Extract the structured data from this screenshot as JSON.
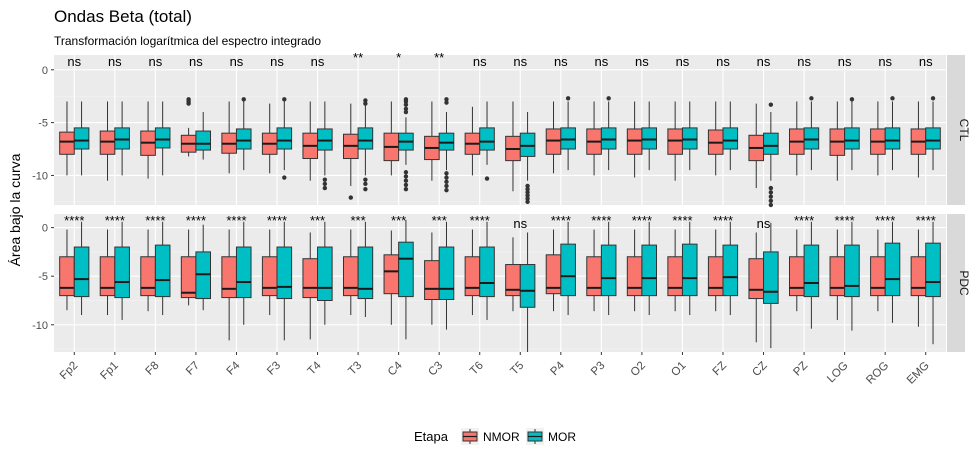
{
  "chart_data": {
    "type": "boxplot",
    "title": "Ondas Beta (total)",
    "subtitle": "Transformación logarítmica del espectro integrado",
    "ylabel": "Área bajo la curva",
    "xlabel": "",
    "ylim": [
      -12.8,
      1.4
    ],
    "yticks": [
      0,
      -5,
      -10
    ],
    "categories": [
      "Fp2",
      "Fp1",
      "F8",
      "F7",
      "F4",
      "F3",
      "T4",
      "T3",
      "C4",
      "C3",
      "T6",
      "T5",
      "P4",
      "P3",
      "O2",
      "O1",
      "FZ",
      "CZ",
      "PZ",
      "LOG",
      "ROG",
      "EMG"
    ],
    "legend": {
      "title": "Etapa",
      "position": "bottom",
      "items": [
        {
          "label": "NMOR",
          "color": "#F8766D"
        },
        {
          "label": "MOR",
          "color": "#00BFC4"
        }
      ]
    },
    "panels": [
      {
        "strip": "CTL",
        "significance": [
          "ns",
          "ns",
          "ns",
          "ns",
          "ns",
          "ns",
          "ns",
          "**",
          "*",
          "**",
          "ns",
          "ns",
          "ns",
          "ns",
          "ns",
          "ns",
          "ns",
          "ns",
          "ns",
          "ns",
          "ns",
          "ns"
        ],
        "series": [
          {
            "name": "NMOR",
            "boxes": [
              {
                "min": -10,
                "q1": -8.0,
                "median": -6.8,
                "q3": -5.9,
                "max": -3.0
              },
              {
                "min": -10.5,
                "q1": -8.0,
                "median": -6.8,
                "q3": -5.8,
                "max": -3.0
              },
              {
                "min": -10.3,
                "q1": -8.1,
                "median": -6.9,
                "q3": -5.8,
                "max": -3.0
              },
              {
                "min": -8.2,
                "q1": -7.8,
                "median": -7.0,
                "q3": -6.2,
                "max": -5.5,
                "outliers": [
                  -2.8,
                  -3.0,
                  -3.2
                ]
              },
              {
                "min": -9.8,
                "q1": -7.9,
                "median": -7.0,
                "q3": -6.0,
                "max": -3.0
              },
              {
                "min": -9.8,
                "q1": -8.0,
                "median": -7.0,
                "q3": -6.0,
                "max": -3.2
              },
              {
                "min": -10.5,
                "q1": -8.4,
                "median": -7.2,
                "q3": -6.0,
                "max": -3.0
              },
              {
                "min": -11.0,
                "q1": -8.4,
                "median": -7.2,
                "q3": -6.1,
                "max": -3.2,
                "outliers": [
                  -12.1
                ]
              },
              {
                "min": -10.0,
                "q1": -8.6,
                "median": -7.3,
                "q3": -6.0,
                "max": -3.0
              },
              {
                "min": -10.5,
                "q1": -8.5,
                "median": -7.4,
                "q3": -6.3,
                "max": -3.0
              },
              {
                "min": -10.0,
                "q1": -8.0,
                "median": -7.0,
                "q3": -6.0,
                "max": -3.5
              },
              {
                "min": -11.5,
                "q1": -8.6,
                "median": -7.5,
                "q3": -6.3,
                "max": -3.0
              },
              {
                "min": -9.8,
                "q1": -8.0,
                "median": -6.7,
                "q3": -5.6,
                "max": -3.0
              },
              {
                "min": -10.0,
                "q1": -8.0,
                "median": -6.8,
                "q3": -5.6,
                "max": -3.0
              },
              {
                "min": -10.2,
                "q1": -8.0,
                "median": -6.7,
                "q3": -5.6,
                "max": -3.0
              },
              {
                "min": -10.5,
                "q1": -8.0,
                "median": -6.7,
                "q3": -5.6,
                "max": -3.0
              },
              {
                "min": -10.0,
                "q1": -8.0,
                "median": -6.9,
                "q3": -5.7,
                "max": -3.0
              },
              {
                "min": -11.2,
                "q1": -8.6,
                "median": -7.4,
                "q3": -6.2,
                "max": -3.2
              },
              {
                "min": -10.0,
                "q1": -8.0,
                "median": -6.8,
                "q3": -5.6,
                "max": -3.0
              },
              {
                "min": -10.5,
                "q1": -8.1,
                "median": -6.8,
                "q3": -5.6,
                "max": -3.0
              },
              {
                "min": -10.0,
                "q1": -8.0,
                "median": -6.8,
                "q3": -5.6,
                "max": -3.0
              },
              {
                "min": -10.2,
                "q1": -8.0,
                "median": -6.8,
                "q3": -5.6,
                "max": -3.0
              }
            ]
          },
          {
            "name": "MOR",
            "boxes": [
              {
                "min": -10,
                "q1": -7.5,
                "median": -6.7,
                "q3": -5.5,
                "max": -3.0
              },
              {
                "min": -10,
                "q1": -7.5,
                "median": -6.6,
                "q3": -5.5,
                "max": -3.0
              },
              {
                "min": -10,
                "q1": -7.4,
                "median": -6.6,
                "q3": -5.5,
                "max": -3.0
              },
              {
                "min": -8.5,
                "q1": -7.6,
                "median": -7.0,
                "q3": -5.8,
                "max": -4.0
              },
              {
                "min": -9.5,
                "q1": -7.5,
                "median": -6.7,
                "q3": -5.6,
                "max": -3.0,
                "outliers": [
                  -2.8
                ]
              },
              {
                "min": -9.5,
                "q1": -7.5,
                "median": -6.7,
                "q3": -5.5,
                "max": -3.0,
                "outliers": [
                  -2.8,
                  -10.2
                ]
              },
              {
                "min": -10.0,
                "q1": -7.6,
                "median": -6.7,
                "q3": -5.6,
                "max": -3.0,
                "outliers": [
                  -10.4,
                  -10.8,
                  -11.2
                ]
              },
              {
                "min": -10.0,
                "q1": -7.5,
                "median": -6.7,
                "q3": -5.5,
                "max": -3.0,
                "outliers": [
                  -2.9,
                  -3.2,
                  -10.4,
                  -10.8,
                  -11.3
                ]
              },
              {
                "min": -9.0,
                "q1": -7.6,
                "median": -6.8,
                "q3": -6.0,
                "max": -4.5,
                "outliers": [
                  -2.8,
                  -3.0,
                  -3.3,
                  -3.7,
                  -4.0,
                  -9.7,
                  -10.1,
                  -10.5,
                  -10.9,
                  -11.3
                ]
              },
              {
                "min": -9.5,
                "q1": -7.6,
                "median": -6.9,
                "q3": -6.0,
                "max": -4.0,
                "outliers": [
                  -2.8,
                  -3.1,
                  -9.8,
                  -10.2,
                  -10.6,
                  -11.0,
                  -11.4
                ]
              },
              {
                "min": -9.0,
                "q1": -7.6,
                "median": -6.8,
                "q3": -5.5,
                "max": -3.0,
                "outliers": [
                  -10.3
                ]
              },
              {
                "min": -10.5,
                "q1": -8.2,
                "median": -7.2,
                "q3": -6.0,
                "max": -4.0,
                "outliers": [
                  -11.0,
                  -11.3,
                  -11.6,
                  -11.9,
                  -12.2,
                  -12.5
                ]
              },
              {
                "min": -9.5,
                "q1": -7.5,
                "median": -6.6,
                "q3": -5.5,
                "max": -3.0,
                "outliers": [
                  -2.7
                ]
              },
              {
                "min": -9.5,
                "q1": -7.5,
                "median": -6.6,
                "q3": -5.5,
                "max": -3.0,
                "outliers": [
                  -2.7
                ]
              },
              {
                "min": -9.5,
                "q1": -7.5,
                "median": -6.6,
                "q3": -5.5,
                "max": -3.0
              },
              {
                "min": -9.5,
                "q1": -7.5,
                "median": -6.6,
                "q3": -5.5,
                "max": -3.0
              },
              {
                "min": -9.5,
                "q1": -7.5,
                "median": -6.7,
                "q3": -5.5,
                "max": -3.0
              },
              {
                "min": -10.5,
                "q1": -8.0,
                "median": -7.2,
                "q3": -6.0,
                "max": -4.0,
                "outliers": [
                  -3.3,
                  -11.2,
                  -11.6,
                  -12.0,
                  -12.4,
                  -12.8
                ]
              },
              {
                "min": -9.5,
                "q1": -7.5,
                "median": -6.6,
                "q3": -5.5,
                "max": -3.0,
                "outliers": [
                  -2.7
                ]
              },
              {
                "min": -9.5,
                "q1": -7.5,
                "median": -6.7,
                "q3": -5.5,
                "max": -3.0,
                "outliers": [
                  -2.8
                ]
              },
              {
                "min": -9.5,
                "q1": -7.5,
                "median": -6.7,
                "q3": -5.5,
                "max": -3.0,
                "outliers": [
                  -2.7
                ]
              },
              {
                "min": -9.5,
                "q1": -7.5,
                "median": -6.7,
                "q3": -5.5,
                "max": -3.0,
                "outliers": [
                  -2.7
                ]
              }
            ]
          }
        ]
      },
      {
        "strip": "PDC",
        "significance": [
          "****",
          "****",
          "****",
          "****",
          "****",
          "****",
          "***",
          "***",
          "***",
          "***",
          "****",
          "ns",
          "****",
          "****",
          "****",
          "****",
          "****",
          "ns",
          "****",
          "****",
          "****",
          "****"
        ],
        "series": [
          {
            "name": "NMOR",
            "boxes": [
              {
                "min": -8.5,
                "q1": -7.0,
                "median": -6.2,
                "q3": -3.0,
                "max": -0.2
              },
              {
                "min": -9.0,
                "q1": -7.0,
                "median": -6.2,
                "q3": -3.0,
                "max": -0.2
              },
              {
                "min": -8.6,
                "q1": -7.0,
                "median": -6.2,
                "q3": -3.0,
                "max": -0.2
              },
              {
                "min": -8.0,
                "q1": -7.2,
                "median": -6.7,
                "q3": -3.0,
                "max": -0.2
              },
              {
                "min": -11.6,
                "q1": -7.2,
                "median": -6.3,
                "q3": -3.0,
                "max": -0.2
              },
              {
                "min": -9.0,
                "q1": -7.0,
                "median": -6.2,
                "q3": -3.0,
                "max": -0.2
              },
              {
                "min": -11.5,
                "q1": -7.2,
                "median": -6.2,
                "q3": -3.2,
                "max": -0.5
              },
              {
                "min": -9.0,
                "q1": -7.0,
                "median": -6.2,
                "q3": -3.0,
                "max": -0.2
              },
              {
                "min": -10.0,
                "q1": -6.8,
                "median": -4.5,
                "q3": -2.8,
                "max": -0.3
              },
              {
                "min": -10.0,
                "q1": -7.4,
                "median": -6.3,
                "q3": -3.4,
                "max": -0.5
              },
              {
                "min": -9.0,
                "q1": -7.0,
                "median": -6.2,
                "q3": -3.0,
                "max": -0.2
              },
              {
                "min": -8.6,
                "q1": -7.0,
                "median": -6.4,
                "q3": -3.8,
                "max": -1.0
              },
              {
                "min": -8.6,
                "q1": -6.8,
                "median": -6.2,
                "q3": -2.8,
                "max": -0.2
              },
              {
                "min": -8.6,
                "q1": -7.0,
                "median": -6.2,
                "q3": -3.0,
                "max": -0.2
              },
              {
                "min": -8.6,
                "q1": -7.0,
                "median": -6.2,
                "q3": -3.0,
                "max": -0.2
              },
              {
                "min": -8.6,
                "q1": -7.0,
                "median": -6.2,
                "q3": -3.0,
                "max": -0.2
              },
              {
                "min": -8.6,
                "q1": -7.0,
                "median": -6.2,
                "q3": -3.0,
                "max": -0.2
              },
              {
                "min": -11.8,
                "q1": -7.3,
                "median": -6.4,
                "q3": -3.2,
                "max": -0.5
              },
              {
                "min": -8.6,
                "q1": -7.0,
                "median": -6.2,
                "q3": -3.0,
                "max": -0.2
              },
              {
                "min": -9.5,
                "q1": -7.0,
                "median": -6.2,
                "q3": -3.0,
                "max": -0.2
              },
              {
                "min": -8.6,
                "q1": -7.0,
                "median": -6.2,
                "q3": -3.0,
                "max": -0.2
              },
              {
                "min": -10.2,
                "q1": -7.0,
                "median": -6.2,
                "q3": -3.0,
                "max": -0.2
              }
            ]
          },
          {
            "name": "MOR",
            "boxes": [
              {
                "min": -9.0,
                "q1": -7.1,
                "median": -5.3,
                "q3": -2.0,
                "max": 0.6
              },
              {
                "min": -9.5,
                "q1": -7.2,
                "median": -5.6,
                "q3": -2.0,
                "max": 0.6
              },
              {
                "min": -9.0,
                "q1": -7.1,
                "median": -5.4,
                "q3": -1.8,
                "max": 0.6
              },
              {
                "min": -8.5,
                "q1": -7.3,
                "median": -4.8,
                "q3": -2.5,
                "max": 0.3
              },
              {
                "min": -10.0,
                "q1": -7.2,
                "median": -5.6,
                "q3": -2.0,
                "max": 0.6
              },
              {
                "min": -11.6,
                "q1": -7.3,
                "median": -6.1,
                "q3": -2.0,
                "max": 0.6
              },
              {
                "min": -10.0,
                "q1": -7.5,
                "median": -6.2,
                "q3": -2.0,
                "max": 0.6
              },
              {
                "min": -9.2,
                "q1": -7.3,
                "median": -6.3,
                "q3": -2.0,
                "max": 0.6
              },
              {
                "min": -11.5,
                "q1": -7.1,
                "median": -3.2,
                "q3": -1.5,
                "max": 0.8
              },
              {
                "min": -10.5,
                "q1": -7.4,
                "median": -6.3,
                "q3": -2.0,
                "max": 0.6
              },
              {
                "min": -9.5,
                "q1": -7.1,
                "median": -5.7,
                "q3": -2.0,
                "max": 0.6
              },
              {
                "min": -12.8,
                "q1": -8.2,
                "median": -6.5,
                "q3": -3.8,
                "max": -0.5
              },
              {
                "min": -9.0,
                "q1": -7.0,
                "median": -5.0,
                "q3": -1.7,
                "max": 0.6
              },
              {
                "min": -9.0,
                "q1": -7.0,
                "median": -5.2,
                "q3": -1.8,
                "max": 0.6
              },
              {
                "min": -9.0,
                "q1": -7.0,
                "median": -5.2,
                "q3": -1.8,
                "max": 0.6
              },
              {
                "min": -9.0,
                "q1": -7.0,
                "median": -5.2,
                "q3": -1.7,
                "max": 0.6
              },
              {
                "min": -9.0,
                "q1": -7.0,
                "median": -5.1,
                "q3": -1.8,
                "max": 0.6
              },
              {
                "min": -12.4,
                "q1": -7.8,
                "median": -6.6,
                "q3": -2.5,
                "max": 0.5
              },
              {
                "min": -10.4,
                "q1": -7.1,
                "median": -5.7,
                "q3": -1.8,
                "max": 0.6
              },
              {
                "min": -10.6,
                "q1": -7.1,
                "median": -6.0,
                "q3": -1.8,
                "max": 0.6
              },
              {
                "min": -9.8,
                "q1": -7.0,
                "median": -5.3,
                "q3": -1.6,
                "max": 0.6
              },
              {
                "min": -12.0,
                "q1": -7.1,
                "median": -5.6,
                "q3": -1.6,
                "max": 0.6
              }
            ]
          }
        ]
      }
    ]
  }
}
